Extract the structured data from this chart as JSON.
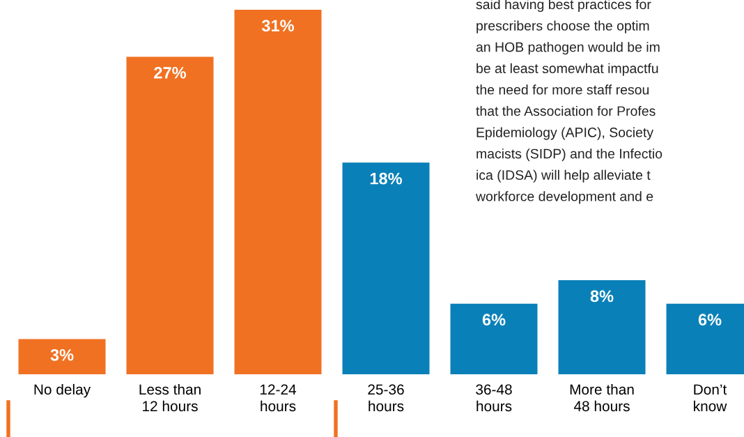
{
  "chart_data": {
    "type": "bar",
    "categories": [
      "No delay",
      "Less than\n12 hours",
      "12-24\nhours",
      "25-36\nhours",
      "36-48\nhours",
      "More than\n48 hours",
      "Don’t\nknow"
    ],
    "values": [
      3,
      27,
      31,
      18,
      6,
      8,
      6
    ],
    "colors": [
      "#f07122",
      "#f07122",
      "#f07122",
      "#0a80b8",
      "#0a80b8",
      "#0a80b8",
      "#0a80b8"
    ],
    "value_labels": [
      "3%",
      "27%",
      "31%",
      "18%",
      "6%",
      "8%",
      "6%"
    ],
    "annotations": [
      "said having best practices for",
      "prescribers choose the optim",
      "an HOB pathogen would be im",
      "be at least somewhat impactfu",
      "the need for more staff resou",
      "that the Association for Profes",
      "Epidemiology (APIC), Society",
      "macists (SIDP) and the Infectio",
      "ica (IDSA) will help alleviate t",
      "workforce development and e"
    ],
    "grid": false,
    "legend": false
  }
}
